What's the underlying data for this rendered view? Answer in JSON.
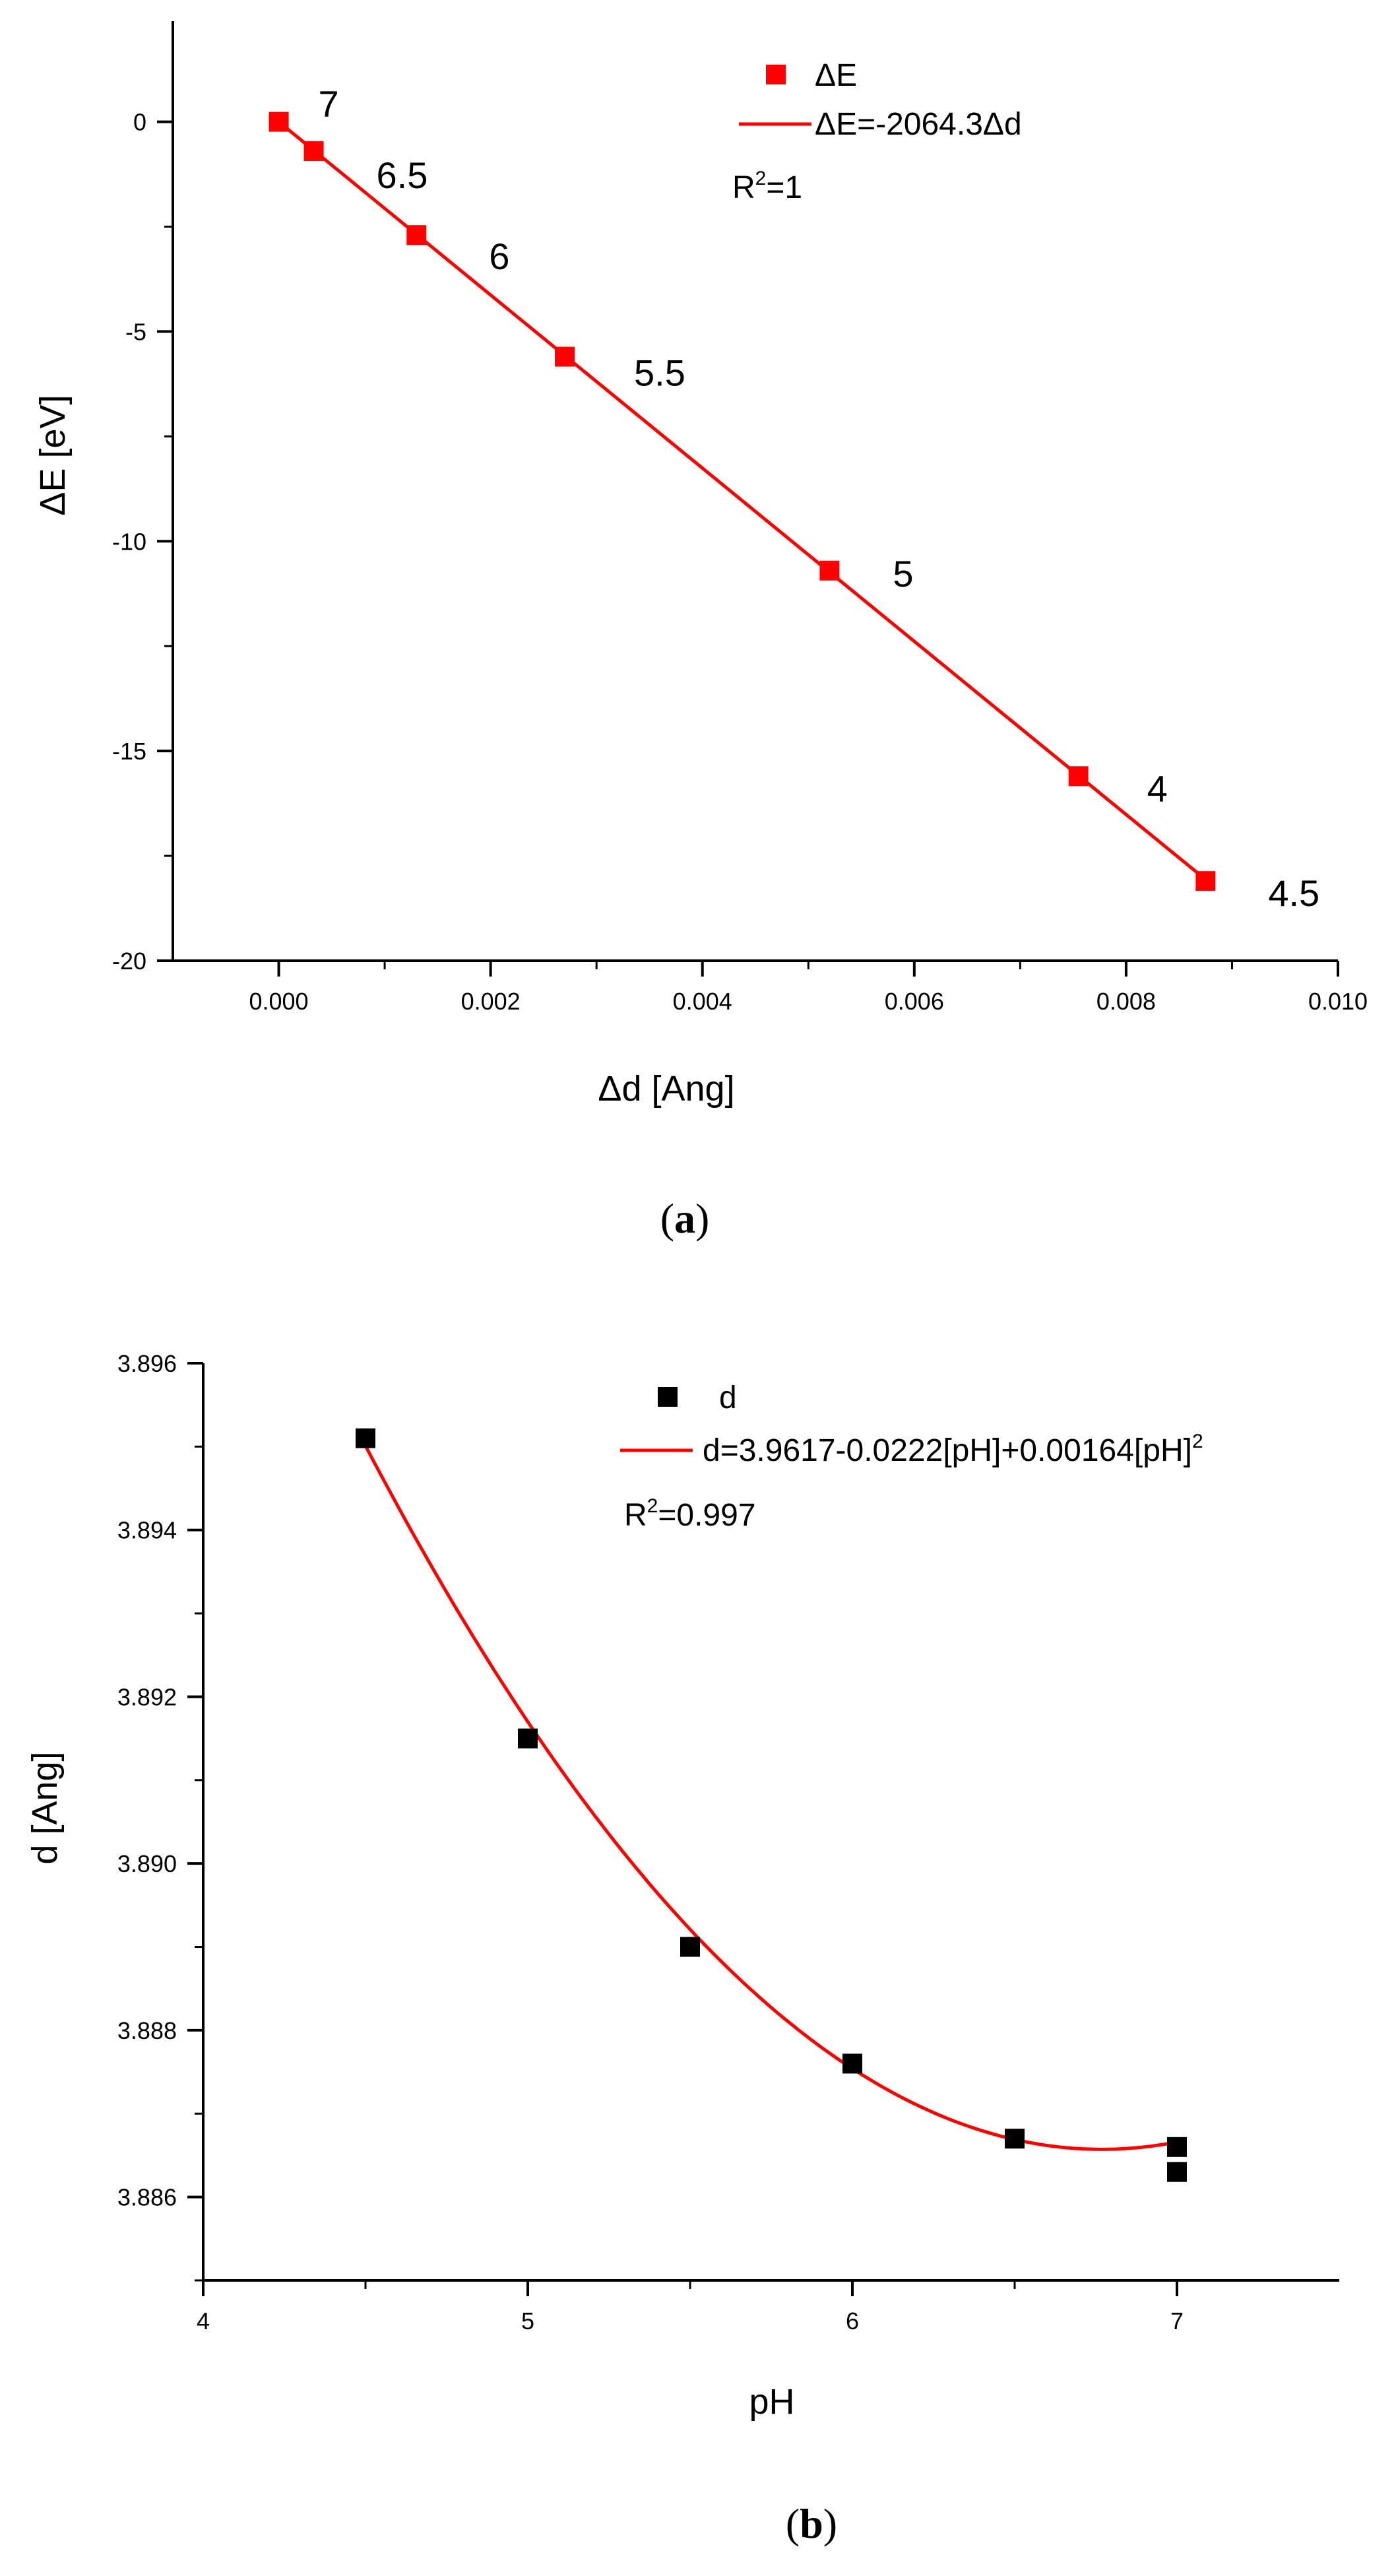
{
  "chart_data": [
    {
      "id": "a",
      "type": "scatter",
      "caption": "a",
      "xlabel": "Δd [Ang]",
      "ylabel": "ΔE [eV]",
      "xlim": [
        -0.001,
        0.01
      ],
      "ylim": [
        -20,
        2.4
      ],
      "xticks": [
        0.0,
        0.002,
        0.004,
        0.006,
        0.008,
        0.01
      ],
      "xtick_labels": [
        "0.000",
        "0.002",
        "0.004",
        "0.006",
        "0.008",
        "0.010"
      ],
      "yticks": [
        0,
        -5,
        -10,
        -15,
        -20
      ],
      "ytick_labels": [
        "0",
        "-5",
        "-10",
        "-15",
        "-20"
      ],
      "color": "#ff0000",
      "marker_color": "#ff0000",
      "line_color": "#ff0000",
      "marker": "square",
      "points": [
        {
          "x": 0.0,
          "y": 0.0,
          "label": "7"
        },
        {
          "x": 0.00033,
          "y": -0.7,
          "label": "6.5"
        },
        {
          "x": 0.0013,
          "y": -2.7,
          "label": "6"
        },
        {
          "x": 0.0027,
          "y": -5.6,
          "label": "5.5"
        },
        {
          "x": 0.0052,
          "y": -10.7,
          "label": "5"
        },
        {
          "x": 0.00755,
          "y": -15.6,
          "label": "4"
        },
        {
          "x": 0.00875,
          "y": -18.1,
          "label": "4.5"
        }
      ],
      "fit": {
        "slope": -2064.3,
        "intercept": 0,
        "x_range": [
          0.0,
          0.00875
        ]
      },
      "legend": {
        "position": "top-right",
        "marker_label": "ΔE",
        "line_label": "ΔE=-2064.3Δd",
        "r2_label_pre": "R",
        "r2_label_sup": "2",
        "r2_label_post": "=1"
      }
    },
    {
      "id": "b",
      "type": "scatter",
      "caption": "b",
      "xlabel": "pH",
      "ylabel": "d [Ang]",
      "xlim": [
        4,
        7.5
      ],
      "ylim": [
        3.885,
        3.896
      ],
      "xticks": [
        4,
        5,
        6,
        7
      ],
      "xtick_labels": [
        "4",
        "5",
        "6",
        "7"
      ],
      "yticks": [
        3.886,
        3.888,
        3.89,
        3.892,
        3.894,
        3.896
      ],
      "ytick_labels": [
        "3.886",
        "3.888",
        "3.890",
        "3.892",
        "3.894",
        "3.896"
      ],
      "marker_color": "#000000",
      "line_color": "#ff0000",
      "marker": "square",
      "points": [
        {
          "x": 4.5,
          "y": 3.8951
        },
        {
          "x": 5.0,
          "y": 3.8915
        },
        {
          "x": 5.5,
          "y": 3.889
        },
        {
          "x": 6.0,
          "y": 3.8876
        },
        {
          "x": 6.5,
          "y": 3.8867
        },
        {
          "x": 7.0,
          "y": 3.8866
        },
        {
          "x": 7.0,
          "y": 3.8863
        }
      ],
      "fit": {
        "a": 3.9617,
        "b": -0.0222,
        "c": 0.00164,
        "x_range": [
          4.5,
          7.0
        ]
      },
      "legend": {
        "position": "top-right",
        "marker_label": "d",
        "line_label": "d=3.9617-0.0222[pH]+0.00164[pH]",
        "line_label_sup": "2",
        "r2_label_pre": "R",
        "r2_label_sup": "2",
        "r2_label_post": "=0.997"
      }
    }
  ]
}
